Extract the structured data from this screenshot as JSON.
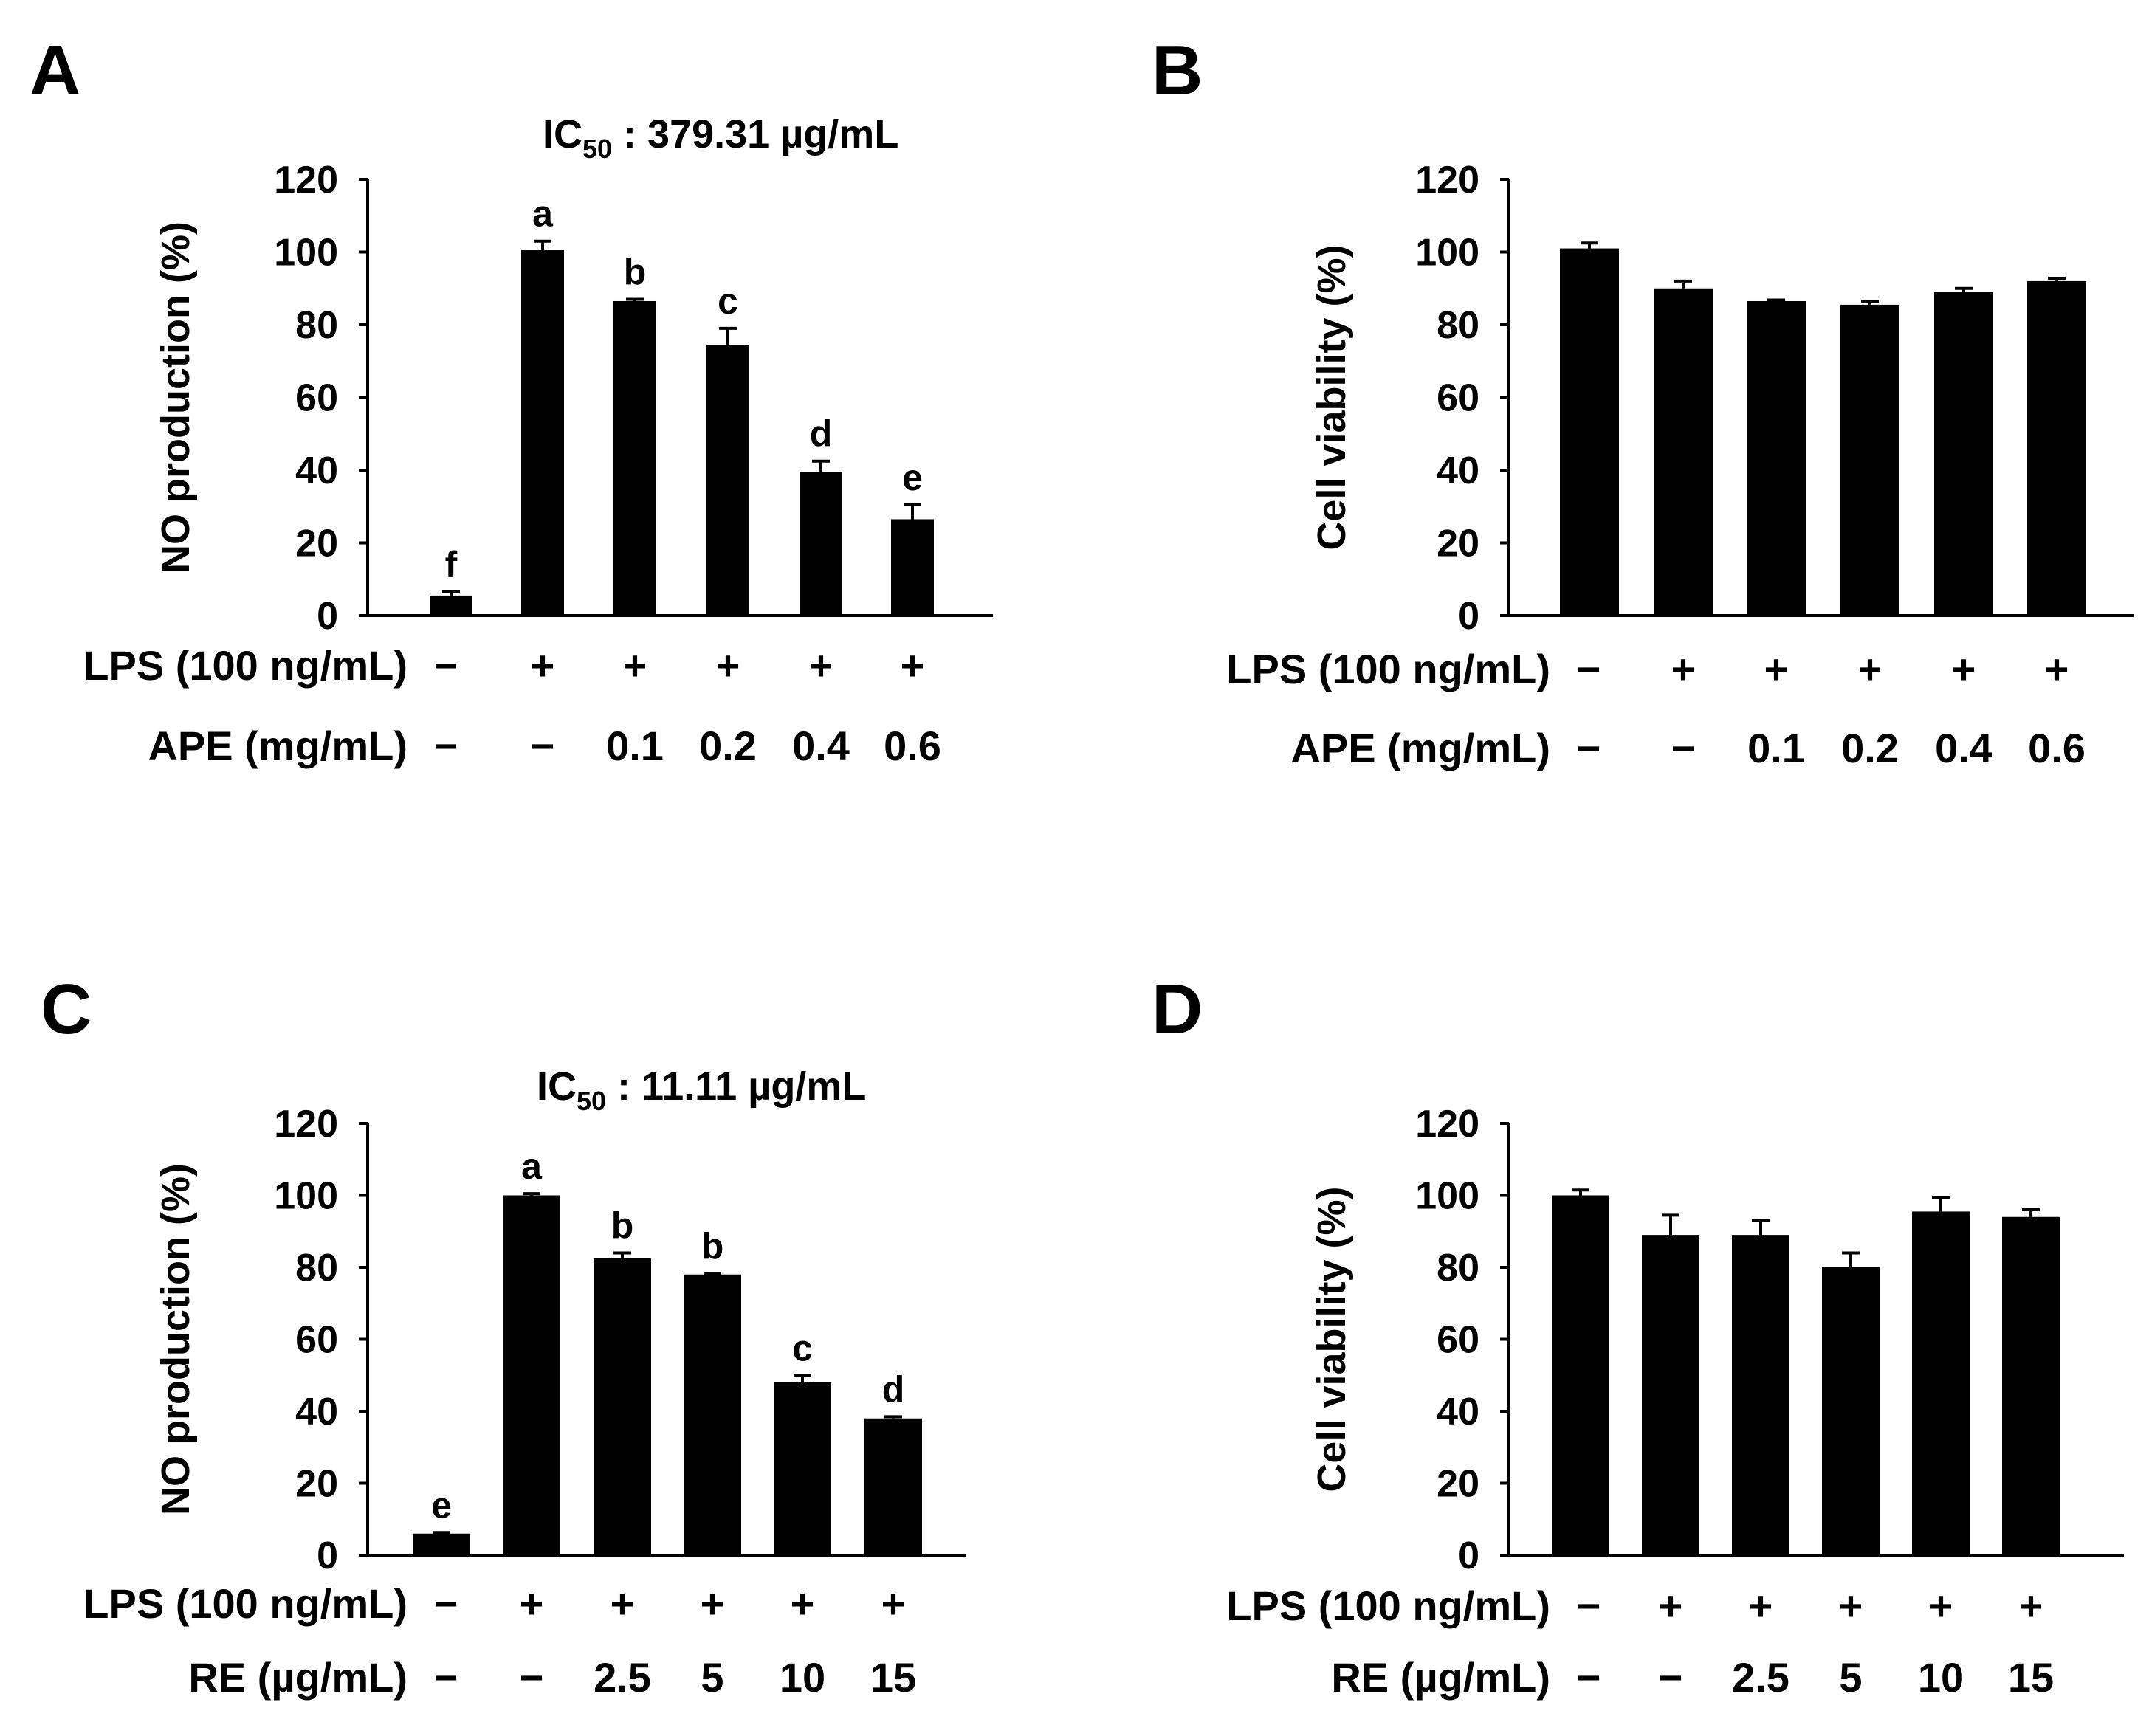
{
  "chart_data": [
    {
      "panel": "A",
      "type": "bar",
      "ylabel": "NO production (%)",
      "ylim": [
        0,
        120
      ],
      "yticks": [
        "0",
        "20",
        "40",
        "60",
        "80",
        "100",
        "120"
      ],
      "annotation": {
        "prefix": "IC",
        "sub": "50",
        "suffix": " : 379.31 µg/mL"
      },
      "values": [
        5.5,
        100.5,
        86.5,
        74.5,
        39.5,
        26.5
      ],
      "errors": [
        1.0,
        2.5,
        0.5,
        4.5,
        3.0,
        4.0
      ],
      "letters": [
        "f",
        "a",
        "b",
        "c",
        "d",
        "e"
      ],
      "conditions": [
        {
          "label": "LPS (100 ng/mL)",
          "values": [
            "−",
            "+",
            "+",
            "+",
            "+",
            "+"
          ]
        },
        {
          "label": "APE (mg/mL)",
          "values": [
            "−",
            "−",
            "0.1",
            "0.2",
            "0.4",
            "0.6"
          ]
        }
      ]
    },
    {
      "panel": "B",
      "type": "bar",
      "ylabel": "Cell viability (%)",
      "ylim": [
        0,
        120
      ],
      "yticks": [
        "0",
        "20",
        "40",
        "60",
        "80",
        "100",
        "120"
      ],
      "values": [
        101,
        90,
        86.5,
        85.5,
        89,
        92
      ],
      "errors": [
        1.5,
        2.0,
        0.3,
        1.0,
        1.0,
        0.8
      ],
      "conditions": [
        {
          "label": "LPS (100 ng/mL)",
          "values": [
            "−",
            "+",
            "+",
            "+",
            "+",
            "+"
          ]
        },
        {
          "label": "APE (mg/mL)",
          "values": [
            "−",
            "−",
            "0.1",
            "0.2",
            "0.4",
            "0.6"
          ]
        }
      ]
    },
    {
      "panel": "C",
      "type": "bar",
      "ylabel": "NO production (%)",
      "ylim": [
        0,
        120
      ],
      "yticks": [
        "0",
        "20",
        "40",
        "60",
        "80",
        "100",
        "120"
      ],
      "annotation": {
        "prefix": "IC",
        "sub": "50",
        "suffix": " : 11.11 µg/mL"
      },
      "values": [
        6,
        100,
        82.5,
        78,
        48,
        38
      ],
      "errors": [
        0.3,
        0.5,
        1.5,
        0.3,
        2.0,
        0.5
      ],
      "letters": [
        "e",
        "a",
        "b",
        "b",
        "c",
        "d"
      ],
      "conditions": [
        {
          "label": "LPS (100 ng/mL)",
          "values": [
            "−",
            "+",
            "+",
            "+",
            "+",
            "+"
          ]
        },
        {
          "label": "RE (µg/mL)",
          "values": [
            "−",
            "−",
            "2.5",
            "5",
            "10",
            "15"
          ]
        }
      ]
    },
    {
      "panel": "D",
      "type": "bar",
      "ylabel": "Cell viability (%)",
      "ylim": [
        0,
        120
      ],
      "yticks": [
        "0",
        "20",
        "40",
        "60",
        "80",
        "100",
        "120"
      ],
      "values": [
        100,
        89,
        89,
        80,
        95.5,
        94
      ],
      "errors": [
        1.5,
        5.5,
        4.0,
        4.0,
        4.0,
        2.0
      ],
      "conditions": [
        {
          "label": "LPS (100 ng/mL)",
          "values": [
            "−",
            "+",
            "+",
            "+",
            "+",
            "+"
          ]
        },
        {
          "label": "RE (µg/mL)",
          "values": [
            "−",
            "−",
            "2.5",
            "5",
            "10",
            "15"
          ]
        }
      ]
    }
  ]
}
